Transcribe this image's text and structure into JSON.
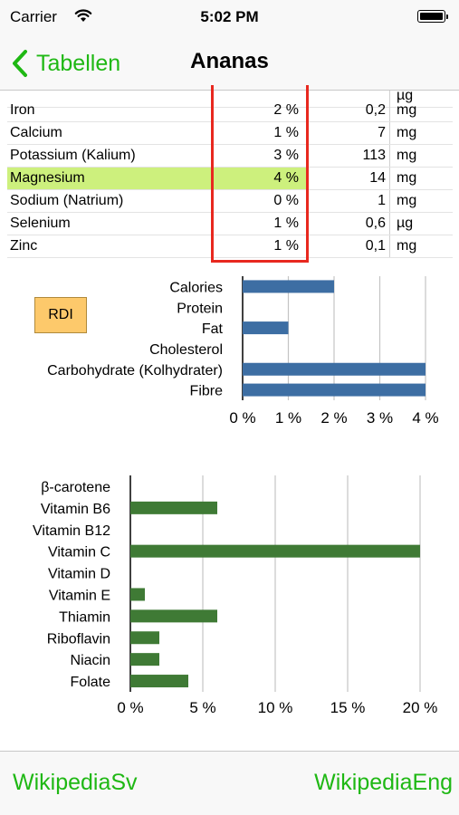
{
  "status": {
    "carrier": "Carrier",
    "time": "5:02 PM"
  },
  "nav": {
    "back_label": "Tabellen",
    "title": "Ananas"
  },
  "table": {
    "rows": [
      {
        "name": "Iron",
        "pct": "2 %",
        "value": "0,2",
        "unit": "mg"
      },
      {
        "name": "Calcium",
        "pct": "1 %",
        "value": "7",
        "unit": "mg"
      },
      {
        "name": "Potassium (Kalium)",
        "pct": "3 %",
        "value": "113",
        "unit": "mg"
      },
      {
        "name": "Magnesium",
        "pct": "4 %",
        "value": "14",
        "unit": "mg",
        "highlighted": true
      },
      {
        "name": "Sodium (Natrium)",
        "pct": "0 %",
        "value": "1",
        "unit": "mg"
      },
      {
        "name": "Selenium",
        "pct": "1 %",
        "value": "0,6",
        "unit": "µg"
      },
      {
        "name": "Zinc",
        "pct": "1 %",
        "value": "0,1",
        "unit": "mg"
      }
    ],
    "partial_top_row": {
      "unit": "µg"
    }
  },
  "rdi_label": "RDI",
  "colors": {
    "accent": "#1fb814",
    "macro_bar": "#3d6ea3",
    "vitamin_bar": "#3f7a35",
    "highlight": "#cdf07d",
    "outline": "#e8281f",
    "rdi": "#fdc96b"
  },
  "chart_data": [
    {
      "type": "bar",
      "orientation": "horizontal",
      "categories": [
        "Calories",
        "Protein",
        "Fat",
        "Cholesterol",
        "Carbohydrate (Kolhydrater)",
        "Fibre"
      ],
      "values": [
        2,
        0,
        1,
        0,
        4,
        4
      ],
      "ticks": [
        "0 %",
        "1 %",
        "2 %",
        "3 %",
        "4 %"
      ],
      "xlim": [
        0,
        4
      ],
      "grid": true
    },
    {
      "type": "bar",
      "orientation": "horizontal",
      "categories": [
        "β-carotene",
        "Vitamin B6",
        "Vitamin B12",
        "Vitamin C",
        "Vitamin D",
        "Vitamin E",
        "Thiamin",
        "Riboflavin",
        "Niacin",
        "Folate"
      ],
      "values": [
        0,
        6,
        0,
        20,
        0,
        1,
        6,
        2,
        2,
        4
      ],
      "ticks": [
        "0 %",
        "5 %",
        "10 %",
        "15 %",
        "20 %"
      ],
      "xlim": [
        0,
        20
      ],
      "grid": true
    }
  ],
  "tabs": {
    "left": "WikipediaSv",
    "right": "WikipediaEng"
  }
}
